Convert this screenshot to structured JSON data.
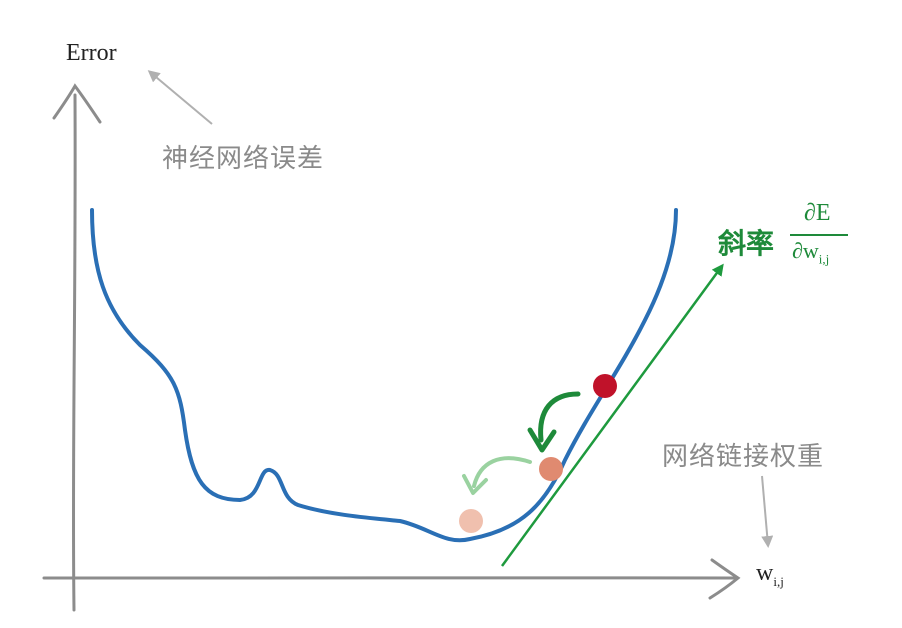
{
  "y_axis_label": "Error",
  "y_axis_note": "神经网络误差",
  "x_axis_label_main": "w",
  "x_axis_label_sub": "i,j",
  "x_axis_note": "网络链接权重",
  "slope_label": "斜率",
  "slope_numerator": "∂E",
  "slope_denominator_main": "∂w",
  "slope_denominator_sub": "i,j",
  "colors": {
    "axis": "#8c8c8c",
    "curve": "#2a6fb5",
    "tangent": "#1e9a3e",
    "ball_current": "#c0122a",
    "ball_next": "#e08a70",
    "ball_later": "#f0c0ae",
    "step_arrow_1": "#1e8a3a",
    "step_arrow_2": "#9ad2a0"
  }
}
